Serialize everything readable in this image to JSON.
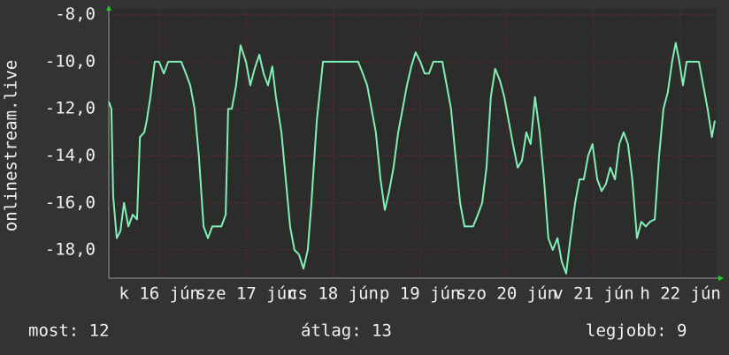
{
  "chart_data": {
    "type": "line",
    "y_label": "onlinestream.live",
    "xlim": [
      0,
      168
    ],
    "ylim": [
      -19.2,
      -7.75
    ],
    "yticks": [
      {
        "value": -8,
        "label": "-8,0"
      },
      {
        "value": -10,
        "label": "-10,0"
      },
      {
        "value": -12,
        "label": "-12,0"
      },
      {
        "value": -14,
        "label": "-14,0"
      },
      {
        "value": -16,
        "label": "-16,0"
      },
      {
        "value": -18,
        "label": "-18,0"
      }
    ],
    "xticks": [
      {
        "value": 14,
        "label": "k 16 jún"
      },
      {
        "value": 38,
        "label": "sze 17 jún"
      },
      {
        "value": 62,
        "label": "cs 18 jún"
      },
      {
        "value": 86,
        "label": "p 19 jún"
      },
      {
        "value": 110,
        "label": "szo 20 jún"
      },
      {
        "value": 134,
        "label": "v 21 jún"
      },
      {
        "value": 158,
        "label": "h 22 jún"
      }
    ],
    "grid": true,
    "x": [
      0,
      0.7,
      1.2,
      2.2,
      3.2,
      4.2,
      5.4,
      6.6,
      7.8,
      8.6,
      9.8,
      10.5,
      11.5,
      12.7,
      13.9,
      15.2,
      16.4,
      18.8,
      20,
      21.3,
      22.5,
      23.7,
      24.9,
      26.2,
      27.4,
      28.6,
      31.1,
      32.3,
      33,
      34,
      35.2,
      36.4,
      37.9,
      39.1,
      40.3,
      41.6,
      42.8,
      44,
      45.2,
      46.2,
      47.7,
      48.9,
      50.1,
      51.3,
      52.6,
      53.8,
      55,
      56,
      57.5,
      59.2,
      61.6,
      64.1,
      66.5,
      68.9,
      70.2,
      71.4,
      72.6,
      73.8,
      75.1,
      76.3,
      77.5,
      78.7,
      80,
      81.2,
      82.4,
      83.6,
      84.8,
      86.1,
      87.3,
      88.5,
      89.7,
      92.2,
      93.4,
      94.6,
      95.8,
      97.1,
      98.3,
      100.7,
      102,
      103.2,
      104.4,
      105.6,
      106.8,
      108.1,
      109.3,
      110.5,
      111.7,
      113,
      114.2,
      115.4,
      116.6,
      117.8,
      119.1,
      120.3,
      121.5,
      122.7,
      124,
      125.2,
      126.4,
      127.6,
      128.9,
      130.1,
      131.3,
      132.5,
      133.7,
      135,
      136.2,
      137.4,
      138.6,
      139.9,
      141.1,
      142.3,
      143.5,
      144.7,
      146,
      147.2,
      148.4,
      149.6,
      150.9,
      152.1,
      153.3,
      154.5,
      155.7,
      156.7,
      157.7,
      158.7,
      159.7,
      160.6,
      163.1,
      164.3,
      165.5,
      166.7,
      167.5
    ],
    "series": [
      {
        "color": "#80f0b4",
        "values": [
          -11.7,
          -12,
          -15.7,
          -17.5,
          -17.2,
          -16,
          -17,
          -16.5,
          -16.7,
          -13.2,
          -13,
          -12.5,
          -11.5,
          -10,
          -10,
          -10.5,
          -10,
          -10,
          -10,
          -10.5,
          -11,
          -12,
          -14,
          -17,
          -17.5,
          -17,
          -17,
          -16.5,
          -12,
          -12,
          -11,
          -9.3,
          -10,
          -11,
          -10.3,
          -9.7,
          -10.5,
          -11,
          -10.2,
          -11.5,
          -13,
          -15,
          -17,
          -18,
          -18.2,
          -18.8,
          -18,
          -16,
          -12.5,
          -10,
          -10,
          -10,
          -10,
          -10,
          -10.5,
          -11,
          -12,
          -13,
          -15,
          -16.3,
          -15.5,
          -14.5,
          -13,
          -12,
          -11,
          -10.2,
          -9.6,
          -10,
          -10.5,
          -10.5,
          -10,
          -10,
          -11,
          -12,
          -14,
          -16,
          -17,
          -17,
          -16.5,
          -16,
          -14.5,
          -11.5,
          -10.3,
          -10.8,
          -11.5,
          -12.5,
          -13.5,
          -14.5,
          -14.2,
          -13,
          -13.5,
          -11.5,
          -13,
          -15,
          -17.5,
          -18,
          -17.5,
          -18.5,
          -19,
          -17.5,
          -16,
          -15,
          -15,
          -14,
          -13.5,
          -15,
          -15.5,
          -15.2,
          -14.5,
          -15,
          -13.5,
          -13,
          -13.5,
          -15,
          -17.5,
          -16.8,
          -17,
          -16.8,
          -16.7,
          -14,
          -12,
          -11.3,
          -10,
          -9.2,
          -10,
          -11,
          -10,
          -10,
          -10,
          -11,
          -12,
          -13.2,
          -12.5
        ]
      }
    ],
    "stats": [
      "most: 12",
      "átlag: 13",
      "legjobb: 9"
    ]
  }
}
